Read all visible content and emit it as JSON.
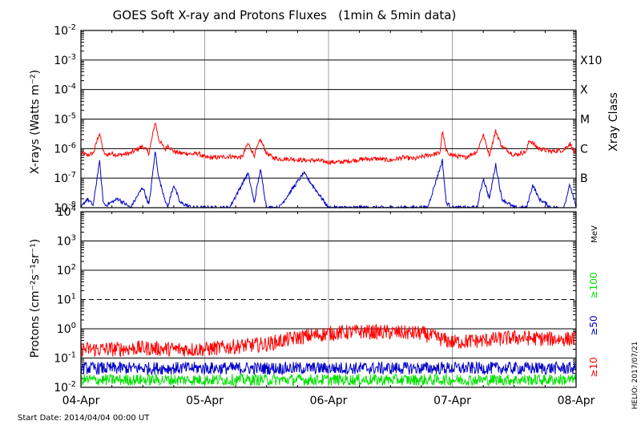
{
  "chart_data": [
    {
      "type": "line",
      "title": "GOES Soft X-ray and Protons Fluxes   (1min & 5min data)",
      "ylabel": "X-rays (Watts m⁻²)",
      "right_label": "Xray Class",
      "yscale": "log",
      "ylim": [
        1e-08,
        0.01
      ],
      "ytick_labels": [
        {
          "base": "10",
          "exp": "-8"
        },
        {
          "base": "10",
          "exp": "-7"
        },
        {
          "base": "10",
          "exp": "-6"
        },
        {
          "base": "10",
          "exp": "-5"
        },
        {
          "base": "10",
          "exp": "-4"
        },
        {
          "base": "10",
          "exp": "-3"
        },
        {
          "base": "10",
          "exp": "-2"
        }
      ],
      "class_labels": [
        {
          "label": "B",
          "value": 1e-07
        },
        {
          "label": "C",
          "value": 1e-06
        },
        {
          "label": "M",
          "value": 1e-05
        },
        {
          "label": "X",
          "value": 0.0001
        },
        {
          "label": "X10",
          "value": 0.001
        }
      ],
      "grid": true,
      "series": [
        {
          "color": "#ff0000",
          "x": [
            0,
            0.05,
            0.1,
            0.15,
            0.18,
            0.2,
            0.25,
            0.3,
            0.35,
            0.4,
            0.5,
            0.55,
            0.6,
            0.63,
            0.65,
            0.68,
            0.7,
            0.75,
            0.8,
            0.85,
            0.9,
            0.95,
            1.0,
            1.1,
            1.2,
            1.3,
            1.35,
            1.4,
            1.45,
            1.5,
            1.55,
            1.6,
            1.7,
            1.8,
            1.9,
            2.0,
            2.1,
            2.2,
            2.3,
            2.4,
            2.5,
            2.6,
            2.7,
            2.8,
            2.9,
            2.92,
            2.95,
            3.0,
            3.1,
            3.2,
            3.25,
            3.3,
            3.35,
            3.4,
            3.5,
            3.6,
            3.62,
            3.65,
            3.7,
            3.8,
            3.9,
            3.95,
            4.0
          ],
          "y": [
            7e-07,
            6e-07,
            7e-07,
            3.5e-06,
            8e-07,
            6e-07,
            7e-07,
            6e-07,
            6.5e-07,
            7e-07,
            1.2e-06,
            7e-07,
            8e-06,
            2e-06,
            1.5e-06,
            9e-07,
            1.3e-06,
            8e-07,
            7e-07,
            7e-07,
            6.5e-07,
            7e-07,
            5e-07,
            5e-07,
            5.5e-07,
            5e-07,
            1.5e-06,
            6e-07,
            2e-06,
            7e-07,
            5e-07,
            4.5e-07,
            4.5e-07,
            4e-07,
            4e-07,
            3.5e-07,
            3.5e-07,
            4e-07,
            4.5e-07,
            4.5e-07,
            4e-07,
            5e-07,
            4.5e-07,
            6e-07,
            7e-07,
            4e-06,
            8e-07,
            6e-07,
            5e-07,
            8e-07,
            3e-06,
            6e-07,
            4e-06,
            1.2e-06,
            6e-07,
            8e-07,
            2e-06,
            1.5e-06,
            1e-06,
            8e-07,
            9e-07,
            1.5e-06,
            6e-07
          ]
        },
        {
          "color": "#0000c8",
          "x": [
            0,
            0.05,
            0.1,
            0.15,
            0.18,
            0.2,
            0.3,
            0.4,
            0.5,
            0.55,
            0.6,
            0.63,
            0.65,
            0.7,
            0.75,
            0.8,
            0.9,
            1.0,
            1.2,
            1.35,
            1.4,
            1.45,
            1.5,
            1.6,
            1.8,
            2.0,
            2.5,
            2.8,
            2.92,
            2.95,
            3.0,
            3.1,
            3.2,
            3.25,
            3.3,
            3.35,
            3.4,
            3.5,
            3.6,
            3.65,
            3.7,
            3.8,
            3.9,
            3.95,
            4.0
          ],
          "y": [
            1e-08,
            2e-08,
            1.2e-08,
            4e-07,
            1.5e-08,
            1.2e-08,
            2e-08,
            1e-08,
            5e-08,
            1.2e-08,
            8e-07,
            1e-07,
            5e-08,
            1e-08,
            6e-08,
            1.5e-08,
            1e-08,
            1e-08,
            1e-08,
            1.5e-07,
            1.5e-08,
            2e-07,
            1e-08,
            1e-08,
            1.5e-07,
            1e-08,
            1e-08,
            1e-08,
            4e-07,
            1.5e-08,
            1e-08,
            1e-08,
            1e-08,
            1e-07,
            2e-08,
            3e-07,
            2e-08,
            1e-08,
            1e-08,
            6e-08,
            2e-08,
            1e-08,
            1e-08,
            6e-08,
            1e-08
          ]
        }
      ]
    },
    {
      "type": "line",
      "ylabel": "Protons (cm⁻²s⁻¹sr⁻¹)",
      "unit_label": "MeV",
      "yscale": "log",
      "ylim": [
        0.01,
        10000.0
      ],
      "ytick_labels": [
        {
          "base": "10",
          "exp": "-2"
        },
        {
          "base": "10",
          "exp": "-1"
        },
        {
          "base": "10",
          "exp": "0"
        },
        {
          "base": "10",
          "exp": "1"
        },
        {
          "base": "10",
          "exp": "2"
        },
        {
          "base": "10",
          "exp": "3"
        },
        {
          "base": "10",
          "exp": "4"
        }
      ],
      "threshold": 10,
      "grid": true,
      "legend": [
        {
          "label": "≥100",
          "color": "#00e000"
        },
        {
          "label": "≥50",
          "color": "#0000c8"
        },
        {
          "label": "≥10",
          "color": "#ff0000"
        }
      ],
      "series": [
        {
          "name": "≥10",
          "color": "#ff0000",
          "x": [
            0,
            0.25,
            0.5,
            0.75,
            1.0,
            1.25,
            1.5,
            1.75,
            2.0,
            2.25,
            2.5,
            2.75,
            3.0,
            3.25,
            3.5,
            3.75,
            4.0
          ],
          "y": [
            0.2,
            0.2,
            0.22,
            0.2,
            0.2,
            0.25,
            0.3,
            0.5,
            0.7,
            0.8,
            0.75,
            0.7,
            0.35,
            0.4,
            0.5,
            0.45,
            0.45
          ]
        },
        {
          "name": "≥50",
          "color": "#0000c8",
          "x": [
            0,
            0.5,
            1.0,
            1.5,
            2.0,
            2.5,
            3.0,
            3.5,
            4.0
          ],
          "y": [
            0.045,
            0.045,
            0.045,
            0.045,
            0.045,
            0.045,
            0.045,
            0.045,
            0.045
          ]
        },
        {
          "name": "≥100",
          "color": "#00e000",
          "x": [
            0,
            0.5,
            1.0,
            1.5,
            2.0,
            2.5,
            3.0,
            3.5,
            4.0
          ],
          "y": [
            0.018,
            0.018,
            0.018,
            0.018,
            0.018,
            0.018,
            0.018,
            0.018,
            0.018
          ]
        }
      ]
    }
  ],
  "x_categories": [
    "04-Apr",
    "05-Apr",
    "06-Apr",
    "07-Apr",
    "08-Apr"
  ],
  "start_date": "Start Date: 2014/04/04 00:00 UT",
  "credit": "HELIO: 2017/07/21"
}
